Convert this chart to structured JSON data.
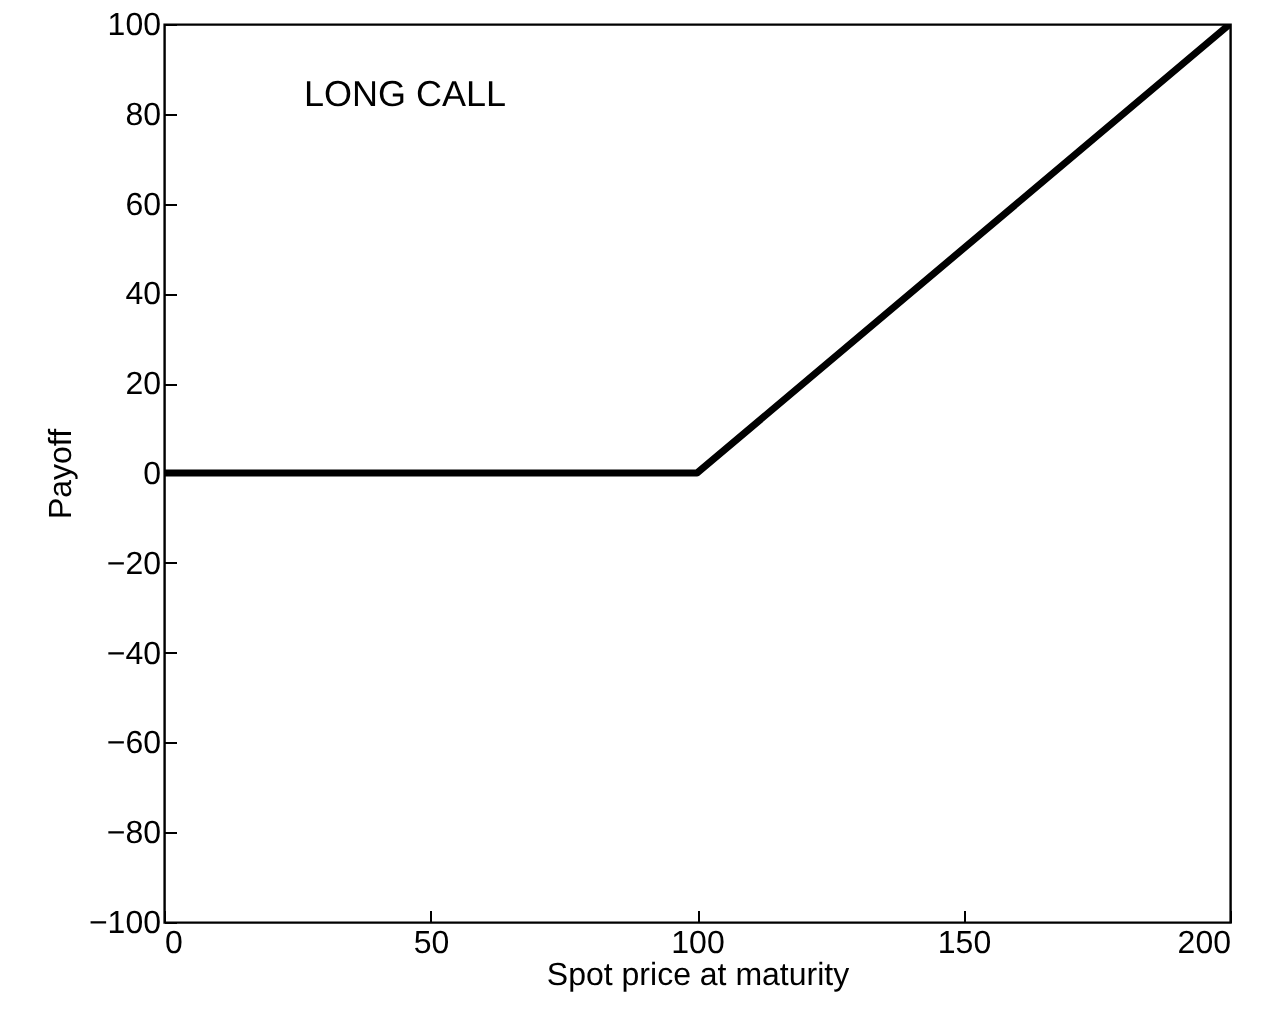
{
  "chart_data": {
    "type": "line",
    "xlabel": "Spot price at maturity",
    "ylabel": "Payoff",
    "annotations": [
      "LONG CALL"
    ],
    "x": [
      0,
      100,
      200
    ],
    "series": [
      {
        "color": "#000000",
        "values": [
          0,
          0,
          100
        ]
      }
    ],
    "xlim": [
      0,
      200
    ],
    "xticks": [
      0,
      50,
      100,
      150,
      200
    ],
    "ylim": [
      -100,
      100
    ],
    "yticks": [
      -100,
      -80,
      -60,
      -40,
      -20,
      0,
      20,
      40,
      60,
      80,
      100
    ],
    "grid": false,
    "marker": "none",
    "line_style": "solid"
  }
}
